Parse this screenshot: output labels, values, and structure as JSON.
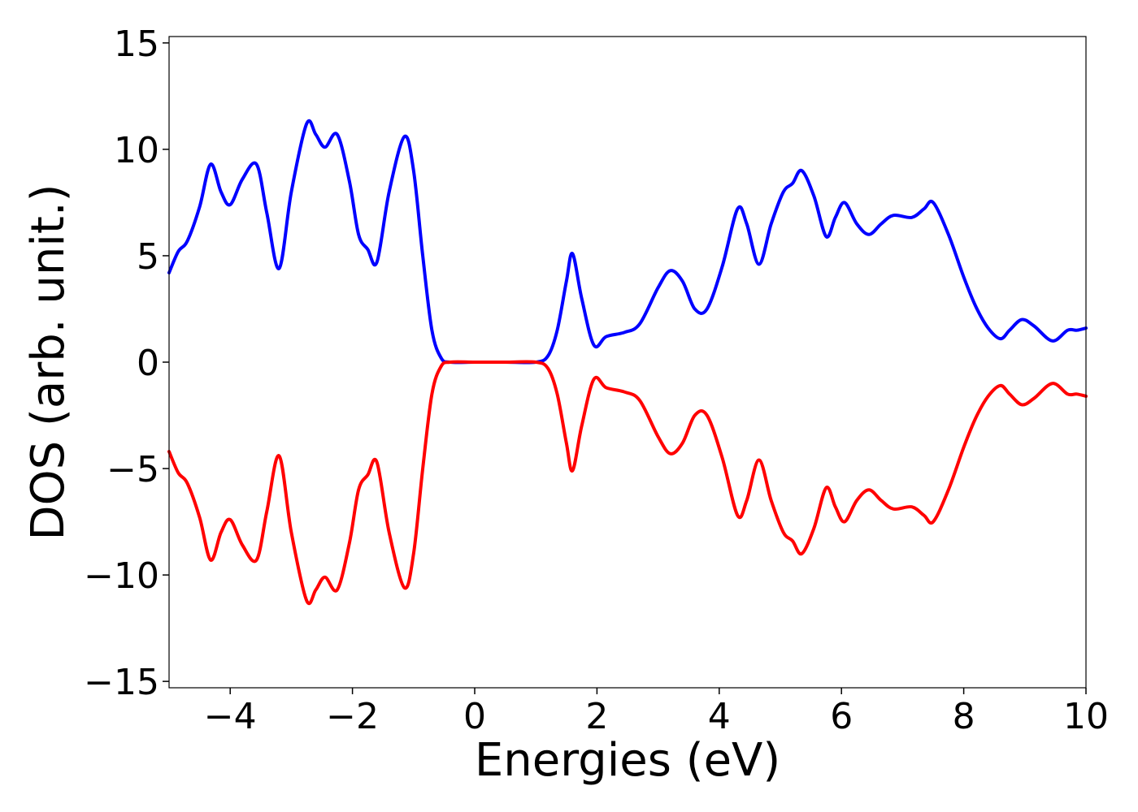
{
  "chart_data": {
    "type": "line",
    "title": "",
    "xlabel": "Energies (eV)",
    "ylabel": "DOS (arb. unit.)",
    "xlim": [
      -5,
      10
    ],
    "ylim": [
      -15.3,
      15.3
    ],
    "x_ticks": [
      -4,
      -2,
      0,
      2,
      4,
      6,
      8,
      10
    ],
    "x_tick_labels": [
      "−4",
      "−2",
      "0",
      "2",
      "4",
      "6",
      "8",
      "10"
    ],
    "y_ticks": [
      -15,
      -10,
      -5,
      0,
      5,
      10,
      15
    ],
    "y_tick_labels": [
      "−15",
      "−10",
      "−5",
      "0",
      "5",
      "10",
      "15"
    ],
    "grid": false,
    "legend": "none",
    "series": [
      {
        "color": "#0000ff",
        "points": [
          [
            -5.0,
            4.2
          ],
          [
            -4.85,
            5.2
          ],
          [
            -4.7,
            5.7
          ],
          [
            -4.5,
            7.3
          ],
          [
            -4.32,
            9.3
          ],
          [
            -4.15,
            8.0
          ],
          [
            -4.0,
            7.4
          ],
          [
            -3.8,
            8.6
          ],
          [
            -3.57,
            9.3
          ],
          [
            -3.4,
            7.0
          ],
          [
            -3.2,
            4.4
          ],
          [
            -3.0,
            8.0
          ],
          [
            -2.75,
            11.2
          ],
          [
            -2.6,
            10.7
          ],
          [
            -2.45,
            10.1
          ],
          [
            -2.25,
            10.7
          ],
          [
            -2.05,
            8.5
          ],
          [
            -1.9,
            6.0
          ],
          [
            -1.75,
            5.3
          ],
          [
            -1.6,
            4.7
          ],
          [
            -1.4,
            8.0
          ],
          [
            -1.15,
            10.6
          ],
          [
            -1.0,
            9.0
          ],
          [
            -0.85,
            5.0
          ],
          [
            -0.7,
            1.5
          ],
          [
            -0.55,
            0.2
          ],
          [
            -0.4,
            0.0
          ],
          [
            0.0,
            0.0
          ],
          [
            0.5,
            0.0
          ],
          [
            1.0,
            0.0
          ],
          [
            1.2,
            0.3
          ],
          [
            1.35,
            1.5
          ],
          [
            1.5,
            3.8
          ],
          [
            1.6,
            5.1
          ],
          [
            1.75,
            3.0
          ],
          [
            1.95,
            0.8
          ],
          [
            2.15,
            1.2
          ],
          [
            2.45,
            1.4
          ],
          [
            2.7,
            1.8
          ],
          [
            3.0,
            3.5
          ],
          [
            3.2,
            4.3
          ],
          [
            3.4,
            3.8
          ],
          [
            3.6,
            2.5
          ],
          [
            3.8,
            2.5
          ],
          [
            4.05,
            4.5
          ],
          [
            4.3,
            7.2
          ],
          [
            4.45,
            6.5
          ],
          [
            4.65,
            4.6
          ],
          [
            4.85,
            6.5
          ],
          [
            5.05,
            8.0
          ],
          [
            5.2,
            8.4
          ],
          [
            5.35,
            9.0
          ],
          [
            5.55,
            7.8
          ],
          [
            5.75,
            5.9
          ],
          [
            5.9,
            6.8
          ],
          [
            6.05,
            7.5
          ],
          [
            6.25,
            6.5
          ],
          [
            6.45,
            6.0
          ],
          [
            6.65,
            6.5
          ],
          [
            6.85,
            6.9
          ],
          [
            7.15,
            6.8
          ],
          [
            7.35,
            7.2
          ],
          [
            7.5,
            7.5
          ],
          [
            7.75,
            6.0
          ],
          [
            8.0,
            4.0
          ],
          [
            8.2,
            2.6
          ],
          [
            8.4,
            1.6
          ],
          [
            8.6,
            1.1
          ],
          [
            8.75,
            1.5
          ],
          [
            8.95,
            2.0
          ],
          [
            9.15,
            1.7
          ],
          [
            9.45,
            1.0
          ],
          [
            9.7,
            1.5
          ],
          [
            9.85,
            1.5
          ],
          [
            10.0,
            1.6
          ]
        ]
      },
      {
        "color": "#ff0000",
        "points": [
          [
            -5.0,
            -4.2
          ],
          [
            -4.85,
            -5.2
          ],
          [
            -4.7,
            -5.7
          ],
          [
            -4.5,
            -7.3
          ],
          [
            -4.32,
            -9.3
          ],
          [
            -4.15,
            -8.0
          ],
          [
            -4.0,
            -7.4
          ],
          [
            -3.8,
            -8.6
          ],
          [
            -3.57,
            -9.3
          ],
          [
            -3.4,
            -7.0
          ],
          [
            -3.2,
            -4.4
          ],
          [
            -3.0,
            -8.0
          ],
          [
            -2.75,
            -11.2
          ],
          [
            -2.6,
            -10.7
          ],
          [
            -2.45,
            -10.1
          ],
          [
            -2.25,
            -10.7
          ],
          [
            -2.05,
            -8.5
          ],
          [
            -1.9,
            -6.0
          ],
          [
            -1.75,
            -5.3
          ],
          [
            -1.6,
            -4.7
          ],
          [
            -1.4,
            -8.0
          ],
          [
            -1.15,
            -10.6
          ],
          [
            -1.0,
            -9.0
          ],
          [
            -0.85,
            -5.0
          ],
          [
            -0.7,
            -1.5
          ],
          [
            -0.55,
            -0.2
          ],
          [
            -0.4,
            0.0
          ],
          [
            0.0,
            0.0
          ],
          [
            0.5,
            0.0
          ],
          [
            1.0,
            0.0
          ],
          [
            1.2,
            -0.3
          ],
          [
            1.35,
            -1.5
          ],
          [
            1.5,
            -3.8
          ],
          [
            1.6,
            -5.1
          ],
          [
            1.75,
            -3.0
          ],
          [
            1.95,
            -0.8
          ],
          [
            2.15,
            -1.2
          ],
          [
            2.45,
            -1.4
          ],
          [
            2.7,
            -1.8
          ],
          [
            3.0,
            -3.5
          ],
          [
            3.2,
            -4.3
          ],
          [
            3.4,
            -3.8
          ],
          [
            3.6,
            -2.5
          ],
          [
            3.8,
            -2.5
          ],
          [
            4.05,
            -4.5
          ],
          [
            4.3,
            -7.2
          ],
          [
            4.45,
            -6.5
          ],
          [
            4.65,
            -4.6
          ],
          [
            4.85,
            -6.5
          ],
          [
            5.05,
            -8.0
          ],
          [
            5.2,
            -8.4
          ],
          [
            5.35,
            -9.0
          ],
          [
            5.55,
            -7.8
          ],
          [
            5.75,
            -5.9
          ],
          [
            5.9,
            -6.8
          ],
          [
            6.05,
            -7.5
          ],
          [
            6.25,
            -6.5
          ],
          [
            6.45,
            -6.0
          ],
          [
            6.65,
            -6.5
          ],
          [
            6.85,
            -6.9
          ],
          [
            7.15,
            -6.8
          ],
          [
            7.35,
            -7.2
          ],
          [
            7.5,
            -7.5
          ],
          [
            7.75,
            -6.0
          ],
          [
            8.0,
            -4.0
          ],
          [
            8.2,
            -2.6
          ],
          [
            8.4,
            -1.6
          ],
          [
            8.6,
            -1.1
          ],
          [
            8.75,
            -1.5
          ],
          [
            8.95,
            -2.0
          ],
          [
            9.15,
            -1.7
          ],
          [
            9.45,
            -1.0
          ],
          [
            9.7,
            -1.5
          ],
          [
            9.85,
            -1.5
          ],
          [
            10.0,
            -1.6
          ]
        ]
      }
    ]
  }
}
